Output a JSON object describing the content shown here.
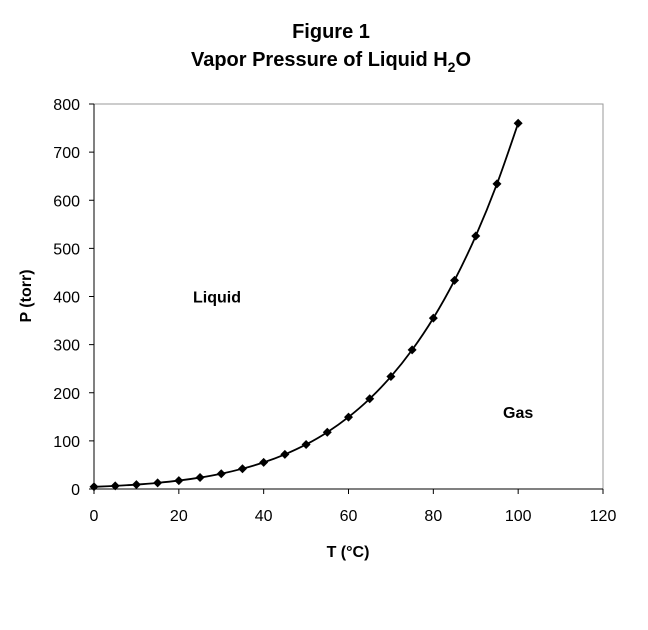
{
  "chart_data": {
    "type": "scatter",
    "title": "Figure 1",
    "subtitle": {
      "prefix": "Vapor Pressure of Liquid H",
      "subscript": "2",
      "suffix": "O"
    },
    "xlabel": "T (°C)",
    "ylabel": "P (torr)",
    "xlim": [
      0,
      120
    ],
    "ylim": [
      0,
      800
    ],
    "x_ticks": [
      0,
      20,
      40,
      60,
      80,
      100,
      120
    ],
    "y_ticks": [
      0,
      100,
      200,
      300,
      400,
      500,
      600,
      700,
      800
    ],
    "grid": false,
    "legend": "none",
    "marker": "diamond",
    "line": "smooth",
    "series": [
      {
        "x": [
          0,
          5,
          10,
          15,
          20,
          25,
          30,
          35,
          40,
          45,
          50,
          55,
          60,
          65,
          70,
          75,
          80,
          85,
          90,
          95,
          100
        ],
        "y": [
          4.6,
          6.5,
          9.2,
          12.8,
          17.5,
          23.8,
          31.8,
          42.2,
          55.3,
          71.9,
          92.5,
          118,
          149.4,
          187.5,
          233.7,
          289.1,
          355.1,
          433.6,
          525.8,
          633.9,
          760
        ]
      }
    ],
    "annotations": [
      {
        "text": "Liquid",
        "x": 29,
        "y": 400
      },
      {
        "text": "Gas",
        "x": 100,
        "y": 160
      }
    ],
    "colors": {
      "line": "#000000",
      "marker": "#000000",
      "axis": "#000000",
      "background": "#ffffff"
    }
  }
}
